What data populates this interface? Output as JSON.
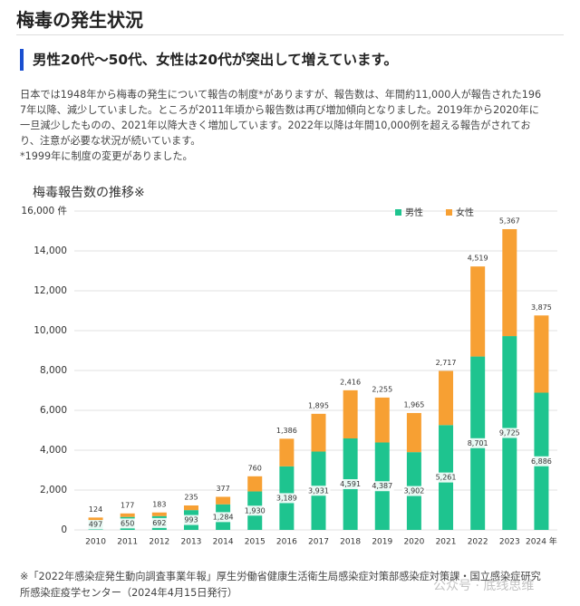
{
  "header": {
    "title": "梅毒の発生状況",
    "subtitle": "男性20代～50代、女性は20代が突出して増えています。"
  },
  "body": {
    "lines": [
      "日本では1948年から梅毒の発生について報告の制度*がありますが、報告数は、年間約11,000人が報告された196",
      "7年以降、減少していました。ところが2011年頃から報告数は再び増加傾向となりました。2019年から2020年に",
      "一旦減少したものの、2021年以降大きく増加しています。2022年以降は年間10,000例を超える報告がされてお",
      "り、注意が必要な状況が続いています。",
      "*1999年に制度の変更がありました。"
    ]
  },
  "chart_data": {
    "type": "stacked-bar",
    "title": "梅毒報告数の推移※",
    "categories": [
      "2010",
      "2011",
      "2012",
      "2013",
      "2014",
      "2015",
      "2016",
      "2017",
      "2018",
      "2019",
      "2020",
      "2021",
      "2022",
      "2023",
      "2024 年"
    ],
    "series": [
      {
        "name": "男性",
        "color": "#1ec48f",
        "values": [
          497,
          650,
          692,
          993,
          1284,
          1930,
          3189,
          3931,
          4591,
          4387,
          3902,
          5261,
          8701,
          9725,
          6886
        ],
        "value_labels": [
          "497",
          "650",
          "692",
          "993",
          "1,284",
          "1,930",
          "3,189",
          "3,931",
          "4,591",
          "4,387",
          "3,902",
          "5,261",
          "8,701",
          "9,725",
          "6,886"
        ]
      },
      {
        "name": "女性",
        "color": "#f7a033",
        "values": [
          124,
          177,
          183,
          235,
          377,
          760,
          1386,
          1895,
          2416,
          2255,
          1965,
          2717,
          4519,
          5367,
          3875
        ],
        "value_labels": [
          "124",
          "177",
          "183",
          "235",
          "377",
          "760",
          "1,386",
          "1,895",
          "2,416",
          "2,255",
          "1,965",
          "2,717",
          "4,519",
          "5,367",
          "3,875"
        ]
      }
    ],
    "ylim": [
      0,
      16000
    ],
    "yticks": [
      0,
      {
        "value": 2000,
        "label": "2,000"
      },
      {
        "value": 4000,
        "label": "4,000"
      },
      {
        "value": 6000,
        "label": "6,000"
      },
      {
        "value": 8000,
        "label": "8,000"
      },
      {
        "value": 10000,
        "label": "10,000"
      },
      {
        "value": 12000,
        "label": "12,000"
      },
      {
        "value": 14000,
        "label": "14,000"
      },
      {
        "value": 16000,
        "label": "16,000 件"
      }
    ],
    "grid": true
  },
  "footer": {
    "lines": [
      "※「2022年感染症発生動向調査事業年報」厚生労働省健康生活衛生局感染症対策部感染症対策課・国立感染症研究",
      "所感染症疫学センター（2024年4月15日発行）"
    ],
    "watermark": "公众号 · 底线思维"
  }
}
